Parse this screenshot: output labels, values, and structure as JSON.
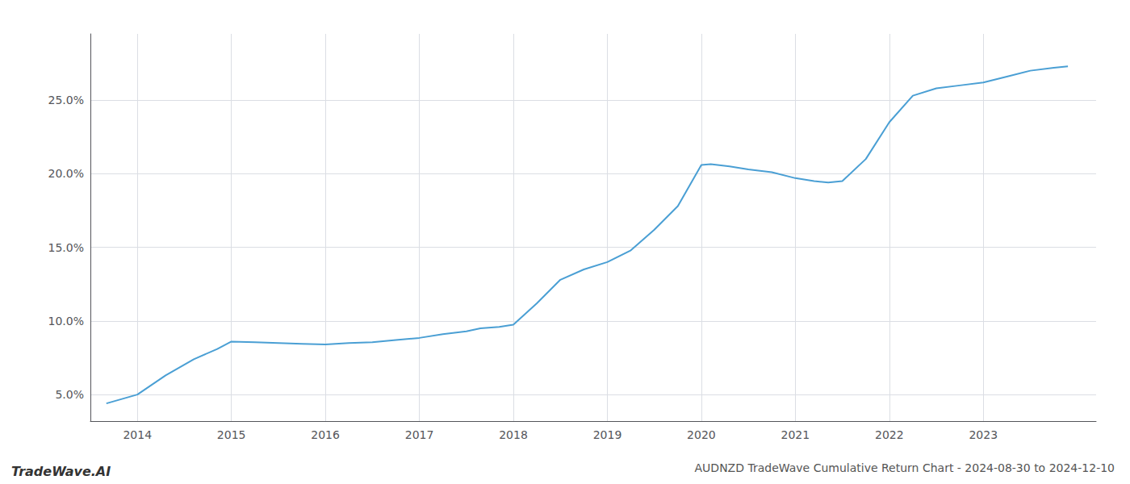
{
  "chart_data": {
    "type": "line",
    "title": "AUDNZD TradeWave Cumulative Return Chart - 2024-08-30 to 2024-12-10",
    "annotations": [
      "TradeWave.AI"
    ],
    "color": "#4a9fd4",
    "x": [
      2013.67,
      2014.0,
      2014.3,
      2014.6,
      2014.85,
      2015.0,
      2015.25,
      2015.5,
      2015.75,
      2016.0,
      2016.25,
      2016.5,
      2016.75,
      2017.0,
      2017.25,
      2017.5,
      2017.65,
      2017.85,
      2018.0,
      2018.25,
      2018.5,
      2018.75,
      2019.0,
      2019.25,
      2019.5,
      2019.75,
      2020.0,
      2020.1,
      2020.3,
      2020.5,
      2020.75,
      2021.0,
      2021.2,
      2021.35,
      2021.5,
      2021.75,
      2022.0,
      2022.25,
      2022.5,
      2022.75,
      2023.0,
      2023.25,
      2023.5,
      2023.75,
      2023.9
    ],
    "values": [
      4.4,
      5.0,
      6.3,
      7.4,
      8.1,
      8.6,
      8.55,
      8.5,
      8.45,
      8.4,
      8.5,
      8.55,
      8.7,
      8.85,
      9.1,
      9.3,
      9.5,
      9.6,
      9.75,
      11.2,
      12.8,
      13.5,
      14.0,
      14.8,
      16.2,
      17.8,
      20.6,
      20.65,
      20.5,
      20.3,
      20.1,
      19.7,
      19.5,
      19.4,
      19.5,
      21.0,
      23.5,
      25.3,
      25.8,
      26.0,
      26.2,
      26.6,
      27.0,
      27.2,
      27.3
    ],
    "xlim": [
      2013.5,
      2024.2
    ],
    "ylim": [
      3.2,
      29.5
    ],
    "xticks": [
      2014,
      2015,
      2016,
      2017,
      2018,
      2019,
      2020,
      2021,
      2022,
      2023
    ],
    "yticks": [
      {
        "value": 5.0,
        "label": "5.0%"
      },
      {
        "value": 10.0,
        "label": "10.0%"
      },
      {
        "value": 15.0,
        "label": "15.0%"
      },
      {
        "value": 20.0,
        "label": "20.0%"
      },
      {
        "value": 25.0,
        "label": "25.0%"
      }
    ],
    "grid": true
  }
}
